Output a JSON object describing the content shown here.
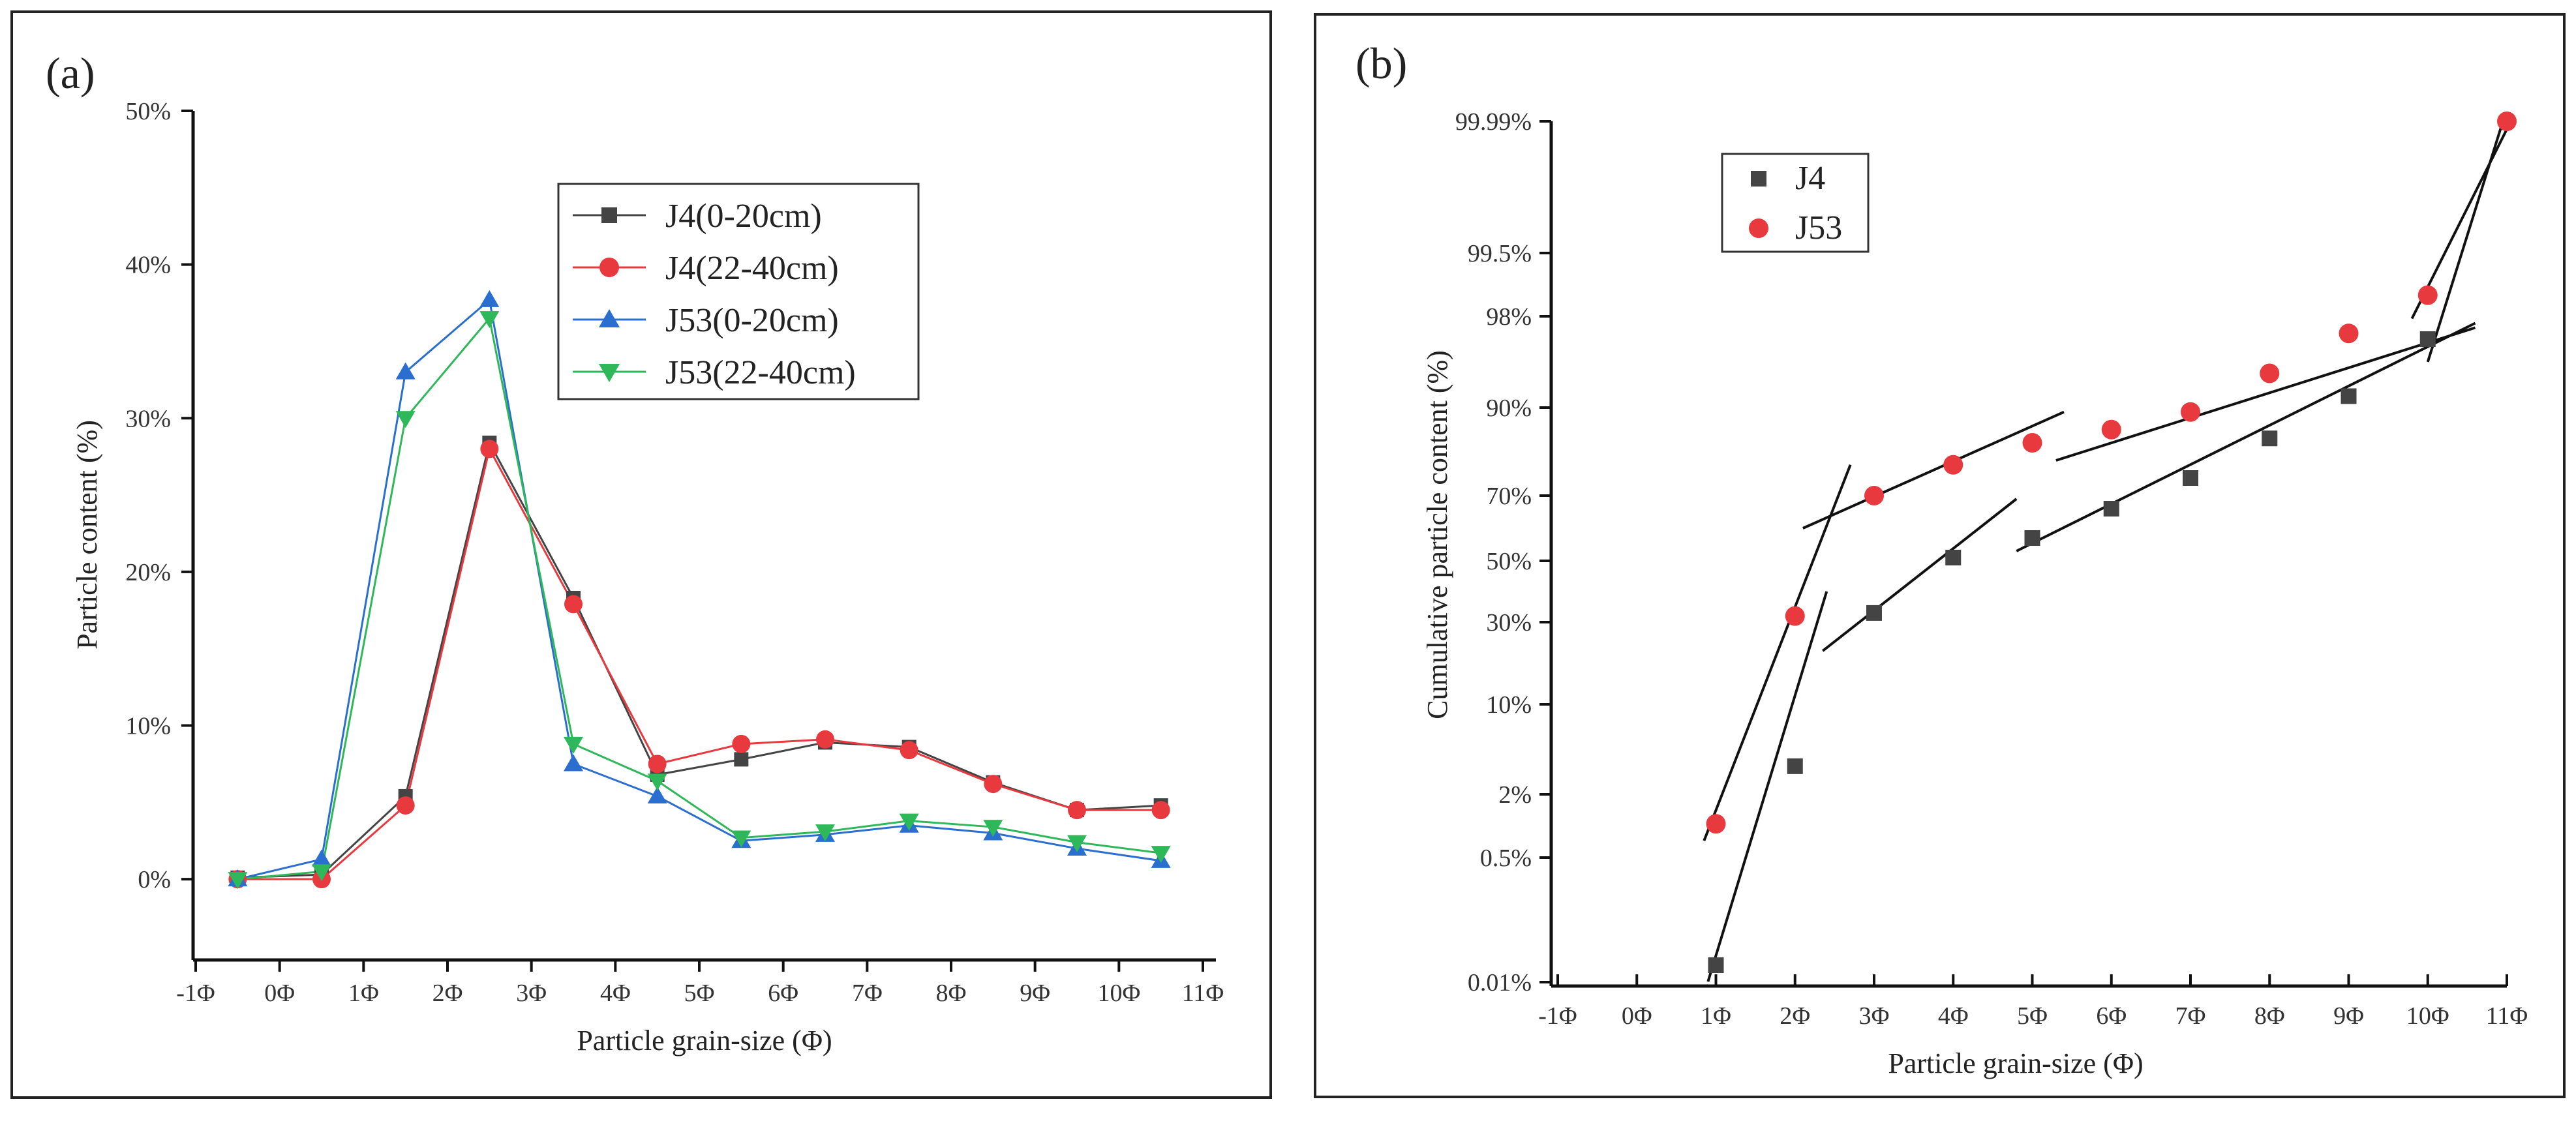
{
  "chart_data": [
    {
      "panel": "(a)",
      "type": "line",
      "xlabel": "Particle grain-size (Φ)",
      "ylabel": "Particle content (%)",
      "x_tick_labels": [
        "-1Φ",
        "0Φ",
        "1Φ",
        "2Φ",
        "3Φ",
        "4Φ",
        "5Φ",
        "6Φ",
        "7Φ",
        "8Φ",
        "9Φ",
        "10Φ",
        "11Φ"
      ],
      "y_tick_labels": [
        "0%",
        "10%",
        "20%",
        "30%",
        "40%",
        "50%"
      ],
      "xlim": [
        -1,
        11
      ],
      "ylim": [
        -5,
        50
      ],
      "x": [
        -0.5,
        0.5,
        1.5,
        2.5,
        3.5,
        4.5,
        5.5,
        6.5,
        7.5,
        8.5,
        9.5,
        10.5
      ],
      "series": [
        {
          "name": "J4(0-20cm)",
          "color": "#444444",
          "marker": "square",
          "values": [
            0.1,
            0.3,
            5.4,
            28.4,
            18.3,
            6.8,
            7.8,
            8.9,
            8.6,
            6.3,
            4.5,
            4.8
          ]
        },
        {
          "name": "J4(22-40cm)",
          "color": "#e8393f",
          "marker": "circle",
          "values": [
            0.0,
            0.0,
            4.8,
            28.0,
            17.9,
            7.5,
            8.8,
            9.1,
            8.4,
            6.2,
            4.5,
            4.5
          ]
        },
        {
          "name": "J53(0-20cm)",
          "color": "#2a6fcf",
          "marker": "triangle-up",
          "values": [
            0.0,
            1.3,
            33.0,
            37.7,
            7.5,
            5.4,
            2.5,
            2.9,
            3.5,
            3.0,
            2.0,
            1.2
          ]
        },
        {
          "name": "J53(22-40cm)",
          "color": "#2fb85a",
          "marker": "triangle-down",
          "values": [
            0.0,
            0.5,
            30.0,
            36.5,
            8.8,
            6.4,
            2.7,
            3.1,
            3.8,
            3.4,
            2.4,
            1.7
          ]
        }
      ],
      "legend_position": "top-right"
    },
    {
      "panel": "(b)",
      "type": "scatter",
      "xlabel": "Particle grain-size (Φ)",
      "ylabel": "Cumulative particle content (%)",
      "x_tick_labels": [
        "-1Φ",
        "0Φ",
        "1Φ",
        "2Φ",
        "3Φ",
        "4Φ",
        "5Φ",
        "6Φ",
        "7Φ",
        "8Φ",
        "9Φ",
        "10Φ",
        "11Φ"
      ],
      "y_tick_labels": [
        "99.99%",
        "99.5%",
        "98%",
        "90%",
        "70%",
        "50%",
        "30%",
        "10%",
        "2%",
        "0.5%",
        "0.01%"
      ],
      "y_scale": "probability",
      "xlim": [
        -1,
        11
      ],
      "series": [
        {
          "name": "J4",
          "color": "#444444",
          "marker": "square",
          "x": [
            1,
            2,
            3,
            4,
            5,
            6,
            7,
            8,
            9,
            10
          ],
          "values": [
            0.03,
            4.5,
            33,
            51,
            57,
            66,
            74,
            83,
            91,
            96
          ]
        },
        {
          "name": "J53",
          "color": "#e8393f",
          "marker": "circle",
          "x": [
            1,
            2,
            3,
            4,
            5,
            6,
            7,
            8,
            9,
            10,
            11
          ],
          "values": [
            1.3,
            32,
            70,
            77,
            82,
            85,
            89,
            93,
            96.5,
            98.5,
            99.99
          ]
        }
      ],
      "fit_lines": [
        {
          "from": [
            0.85,
            0.9
          ],
          "to": [
            2.7,
            77
          ]
        },
        {
          "from": [
            2.35,
            23
          ],
          "to": [
            4.8,
            69
          ]
        },
        {
          "from": [
            5.3,
            78
          ],
          "to": [
            10.6,
            97
          ]
        },
        {
          "from": [
            0.9,
            0.012
          ],
          "to": [
            2.4,
            40
          ]
        },
        {
          "from": [
            2.1,
            60
          ],
          "to": [
            5.4,
            89
          ]
        },
        {
          "from": [
            4.8,
            53
          ],
          "to": [
            10.6,
            97.4
          ]
        },
        {
          "from": [
            9.8,
            97.8
          ],
          "to": [
            11.05,
            99.995
          ]
        },
        {
          "from": [
            10.0,
            94
          ],
          "to": [
            10.95,
            99.99
          ]
        }
      ],
      "legend_position": "top-left"
    }
  ]
}
